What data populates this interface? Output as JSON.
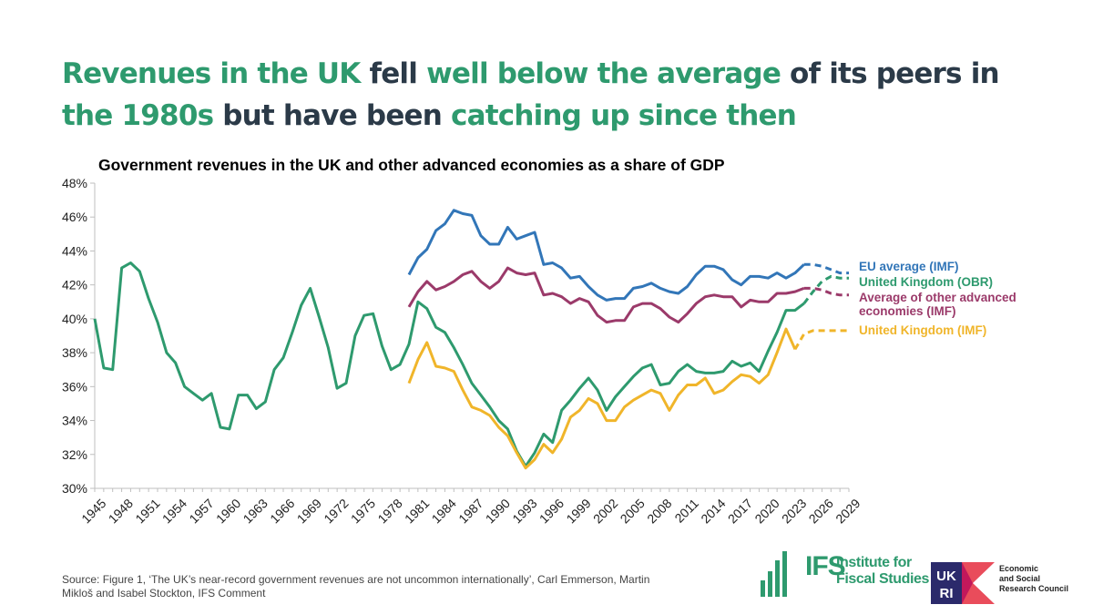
{
  "headline": {
    "parts": [
      {
        "text": "Revenues in the UK",
        "highlight": true
      },
      {
        "text": " fell ",
        "highlight": false
      },
      {
        "text": "well below the average",
        "highlight": true
      },
      {
        "text": " of its peers in ",
        "highlight": false
      },
      {
        "text": "the 1980s",
        "highlight": true
      },
      {
        "text": " but have been ",
        "highlight": false
      },
      {
        "text": "catching up since then",
        "highlight": true
      }
    ],
    "dark_color": "#2b3a48",
    "highlight_color": "#2e9a6e"
  },
  "source": "Source: Figure 1, ‘The UK’s near-record government revenues are not uncommon internationally’, Carl Emmerson, Martin Mikloš and Isabel Stockton, IFS Comment",
  "logos": {
    "ifs_mark": "IFS",
    "ifs_line1": "Institute for",
    "ifs_line2": "Fiscal Studies",
    "ukri_mark_top": "UK",
    "ukri_mark_bottom": "RI",
    "esrc_line1": "Economic",
    "esrc_line2": "and Social",
    "esrc_line3": "Research Council"
  },
  "chart_data": {
    "type": "line",
    "title": "Government revenues in the UK and other advanced economies as a share of GDP",
    "xlabel": "",
    "ylabel": "",
    "ylim": [
      30,
      48
    ],
    "yticks": [
      30,
      32,
      34,
      36,
      38,
      40,
      42,
      44,
      46,
      48
    ],
    "ytick_labels": [
      "30%",
      "32%",
      "34%",
      "36%",
      "38%",
      "40%",
      "42%",
      "44%",
      "46%",
      "48%"
    ],
    "xlim": [
      1945,
      2029
    ],
    "xticks": [
      1945,
      1948,
      1951,
      1954,
      1957,
      1960,
      1963,
      1966,
      1969,
      1972,
      1975,
      1978,
      1981,
      1984,
      1987,
      1990,
      1993,
      1996,
      1999,
      2002,
      2005,
      2008,
      2011,
      2014,
      2017,
      2020,
      2023,
      2026,
      2029
    ],
    "grid": false,
    "legend": "right, labels at line ends",
    "series": [
      {
        "name": "EU average (IMF)",
        "color": "#3276b8",
        "x": [
          1980,
          1981,
          1982,
          1983,
          1984,
          1985,
          1986,
          1987,
          1988,
          1989,
          1990,
          1991,
          1992,
          1993,
          1994,
          1995,
          1996,
          1997,
          1998,
          1999,
          2000,
          2001,
          2002,
          2003,
          2004,
          2005,
          2006,
          2007,
          2008,
          2009,
          2010,
          2011,
          2012,
          2013,
          2014,
          2015,
          2016,
          2017,
          2018,
          2019,
          2020,
          2021,
          2022,
          2023,
          2024
        ],
        "values": [
          42.6,
          43.6,
          44.1,
          45.2,
          45.6,
          46.4,
          46.2,
          46.1,
          44.9,
          44.4,
          44.4,
          45.4,
          44.7,
          44.9,
          45.1,
          43.2,
          43.3,
          43.0,
          42.4,
          42.5,
          41.9,
          41.4,
          41.1,
          41.2,
          41.2,
          41.8,
          41.9,
          42.1,
          41.8,
          41.6,
          41.5,
          41.9,
          42.6,
          43.1,
          43.1,
          42.9,
          42.3,
          42.0,
          42.5,
          42.5,
          42.4,
          42.7,
          42.4,
          42.7,
          43.2
        ],
        "projection_x": [
          2024,
          2025,
          2026,
          2027,
          2028,
          2029
        ],
        "projection_values": [
          43.2,
          43.2,
          43.1,
          42.9,
          42.7,
          42.7
        ]
      },
      {
        "name": "United Kingdom (OBR)",
        "color": "#2e9a6e",
        "x": [
          1945,
          1946,
          1947,
          1948,
          1949,
          1950,
          1951,
          1952,
          1953,
          1954,
          1955,
          1956,
          1957,
          1958,
          1959,
          1960,
          1961,
          1962,
          1963,
          1964,
          1965,
          1966,
          1967,
          1968,
          1969,
          1970,
          1971,
          1972,
          1973,
          1974,
          1975,
          1976,
          1977,
          1978,
          1979,
          1980,
          1981,
          1982,
          1983,
          1984,
          1985,
          1986,
          1987,
          1988,
          1989,
          1990,
          1991,
          1992,
          1993,
          1994,
          1995,
          1996,
          1997,
          1998,
          1999,
          2000,
          2001,
          2002,
          2003,
          2004,
          2005,
          2006,
          2007,
          2008,
          2009,
          2010,
          2011,
          2012,
          2013,
          2014,
          2015,
          2016,
          2017,
          2018,
          2019,
          2020,
          2021,
          2022,
          2023,
          2024
        ],
        "values": [
          40.0,
          37.1,
          37.0,
          43.0,
          43.3,
          42.8,
          41.2,
          39.8,
          38.0,
          37.4,
          36.0,
          35.6,
          35.2,
          35.6,
          33.6,
          33.5,
          35.5,
          35.5,
          34.7,
          35.1,
          37.0,
          37.7,
          39.2,
          40.8,
          41.8,
          40.1,
          38.3,
          35.9,
          36.2,
          39.0,
          40.2,
          40.3,
          38.4,
          37.0,
          37.3,
          38.5,
          41.0,
          40.6,
          39.5,
          39.2,
          38.3,
          37.3,
          36.2,
          35.5,
          34.8,
          34.0,
          33.5,
          32.2,
          31.3,
          32.1,
          33.2,
          32.7,
          34.6,
          35.2,
          35.9,
          36.5,
          35.8,
          34.6,
          35.4,
          36.0,
          36.6,
          37.1,
          37.3,
          36.1,
          36.2,
          36.9,
          37.3,
          36.9,
          36.8,
          36.8,
          36.9,
          37.5,
          37.2,
          37.4,
          36.9,
          38.1,
          39.2,
          40.5,
          40.5,
          40.9
        ],
        "projection_x": [
          2024,
          2025,
          2026,
          2027,
          2028,
          2029
        ],
        "projection_values": [
          40.9,
          41.6,
          42.2,
          42.5,
          42.4,
          42.4
        ]
      },
      {
        "name": "Average of other advanced economies (IMF)",
        "color": "#9b3a6a",
        "x": [
          1980,
          1981,
          1982,
          1983,
          1984,
          1985,
          1986,
          1987,
          1988,
          1989,
          1990,
          1991,
          1992,
          1993,
          1994,
          1995,
          1996,
          1997,
          1998,
          1999,
          2000,
          2001,
          2002,
          2003,
          2004,
          2005,
          2006,
          2007,
          2008,
          2009,
          2010,
          2011,
          2012,
          2013,
          2014,
          2015,
          2016,
          2017,
          2018,
          2019,
          2020,
          2021,
          2022,
          2023,
          2024
        ],
        "values": [
          40.7,
          41.6,
          42.2,
          41.7,
          41.9,
          42.2,
          42.6,
          42.8,
          42.2,
          41.8,
          42.2,
          43.0,
          42.7,
          42.6,
          42.7,
          41.4,
          41.5,
          41.3,
          40.9,
          41.2,
          41.0,
          40.2,
          39.8,
          39.9,
          39.9,
          40.7,
          40.9,
          40.9,
          40.6,
          40.1,
          39.8,
          40.3,
          40.9,
          41.3,
          41.4,
          41.3,
          41.3,
          40.7,
          41.1,
          41.0,
          41.0,
          41.5,
          41.5,
          41.6,
          41.8
        ],
        "projection_x": [
          2024,
          2025,
          2026,
          2027,
          2028,
          2029
        ],
        "projection_values": [
          41.8,
          41.8,
          41.7,
          41.5,
          41.4,
          41.4
        ]
      },
      {
        "name": "United Kingdom (IMF)",
        "color": "#f0b52a",
        "x": [
          1980,
          1981,
          1982,
          1983,
          1984,
          1985,
          1986,
          1987,
          1988,
          1989,
          1990,
          1991,
          1992,
          1993,
          1994,
          1995,
          1996,
          1997,
          1998,
          1999,
          2000,
          2001,
          2002,
          2003,
          2004,
          2005,
          2006,
          2007,
          2008,
          2009,
          2010,
          2011,
          2012,
          2013,
          2014,
          2015,
          2016,
          2017,
          2018,
          2019,
          2020,
          2021,
          2022,
          2023
        ],
        "values": [
          36.2,
          37.6,
          38.6,
          37.2,
          37.1,
          36.9,
          35.8,
          34.8,
          34.6,
          34.3,
          33.6,
          33.1,
          32.1,
          31.2,
          31.7,
          32.6,
          32.1,
          32.9,
          34.2,
          34.6,
          35.3,
          35.0,
          34.0,
          34.0,
          34.8,
          35.2,
          35.5,
          35.8,
          35.6,
          34.6,
          35.5,
          36.1,
          36.1,
          36.5,
          35.6,
          35.8,
          36.3,
          36.7,
          36.6,
          36.2,
          36.7,
          38.0,
          39.4,
          38.2
        ],
        "projection_x": [
          2023,
          2024,
          2025,
          2026,
          2027,
          2028,
          2029
        ],
        "projection_values": [
          38.2,
          39.1,
          39.3,
          39.3,
          39.3,
          39.3,
          39.3
        ]
      }
    ]
  }
}
